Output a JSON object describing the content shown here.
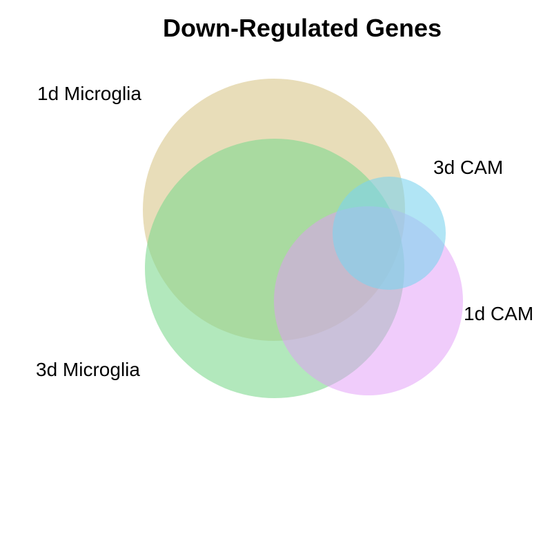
{
  "title": "Down-Regulated Genes",
  "sets": [
    {
      "key": "micro_1d",
      "label": "1d Microglia",
      "color": "#D9C78A"
    },
    {
      "key": "micro_3d",
      "label": "3d Microglia",
      "color": "#7FD88F"
    },
    {
      "key": "cam_3d",
      "label": "3d CAM",
      "color": "#7DD3EE"
    },
    {
      "key": "cam_1d",
      "label": "1d CAM",
      "color": "#E299F7"
    }
  ]
}
